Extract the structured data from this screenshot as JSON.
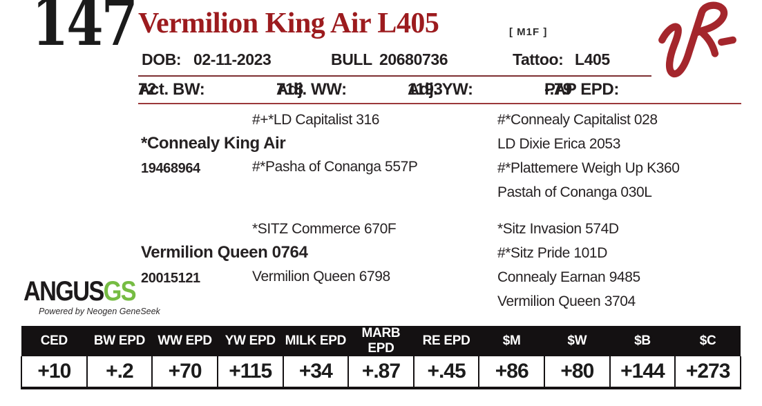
{
  "page": {
    "lot_number": "147",
    "title": "Vermilion King Air L405",
    "genetic_codes": "[ M1F ]"
  },
  "colors": {
    "title_red": "#9c1b1e",
    "brand_logo_red": "#a4262c",
    "gs_green": "#76bc43",
    "table_header_black": "#141112"
  },
  "identification": {
    "dob_label": "DOB:",
    "dob_value": "02-11-2023",
    "sex_label": "BULL",
    "registration_number": "20680736",
    "tattoo_label": "Tattoo:",
    "tattoo_value": "L405"
  },
  "stats": [
    {
      "label": "Act. BW:",
      "value": "72"
    },
    {
      "label": "Adj. WW:",
      "value": "718"
    },
    {
      "label": "Adj. YW:",
      "value": "1193"
    },
    {
      "label": "PAP EPD:",
      "value": "-.79"
    }
  ],
  "pedigree": {
    "sire": {
      "name": "*Connealy King Air",
      "registration": "19468964",
      "grandsire": "#+*LD Capitalist 316",
      "granddam": "#*Pasha of Conanga 557P",
      "ancestors": [
        "#*Connealy Capitalist 028",
        "LD Dixie Erica 2053",
        "#*Plattemere Weigh Up K360",
        "Pastah of Conanga 030L"
      ]
    },
    "dam": {
      "name": "Vermilion Queen 0764",
      "registration": "20015121",
      "grandsire": "*SITZ Commerce 670F",
      "granddam": "Vermilion Queen 6798",
      "ancestors": [
        "*Sitz Invasion 574D",
        "#*Sitz Pride 101D",
        "Connealy Earnan 9485",
        "Vermilion Queen 3704"
      ]
    }
  },
  "angus_gs": {
    "angus_text": "ANGUS",
    "gs_text": "GS",
    "tagline": "Powered by Neogen GeneSeek"
  },
  "epd_table": {
    "columns": [
      "CED",
      "BW EPD",
      "WW EPD",
      "YW EPD",
      "MILK EPD",
      "MARB EPD",
      "RE EPD",
      "$M",
      "$W",
      "$B",
      "$C"
    ],
    "values": [
      "+10",
      "+.2",
      "+70",
      "+115",
      "+34",
      "+.87",
      "+.45",
      "+86",
      "+80",
      "+144",
      "+273"
    ]
  }
}
